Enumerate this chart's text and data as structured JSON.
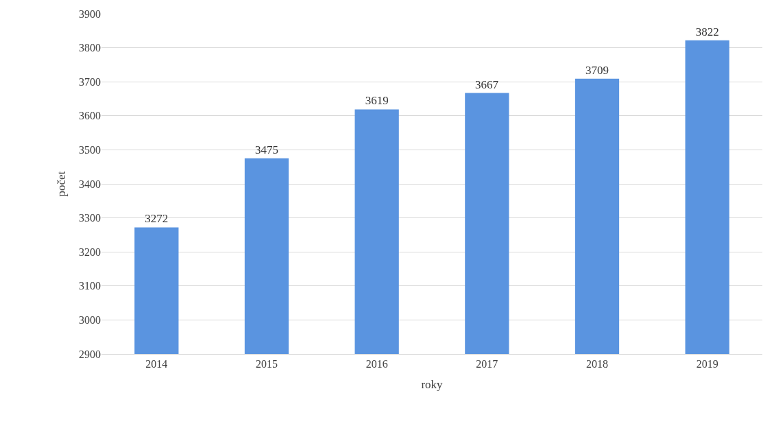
{
  "chart_data": {
    "type": "bar",
    "categories": [
      "2014",
      "2015",
      "2016",
      "2017",
      "2018",
      "2019"
    ],
    "values": [
      3272,
      3475,
      3619,
      3667,
      3709,
      3822
    ],
    "color": "#5a94e0",
    "xlabel": "roky",
    "ylabel": "počet",
    "ylim": [
      2900,
      3900
    ],
    "yticks": [
      2900,
      3000,
      3100,
      3200,
      3300,
      3400,
      3500,
      3600,
      3700,
      3800,
      3900
    ],
    "grid": "y",
    "data_labels": true,
    "legend": false
  }
}
